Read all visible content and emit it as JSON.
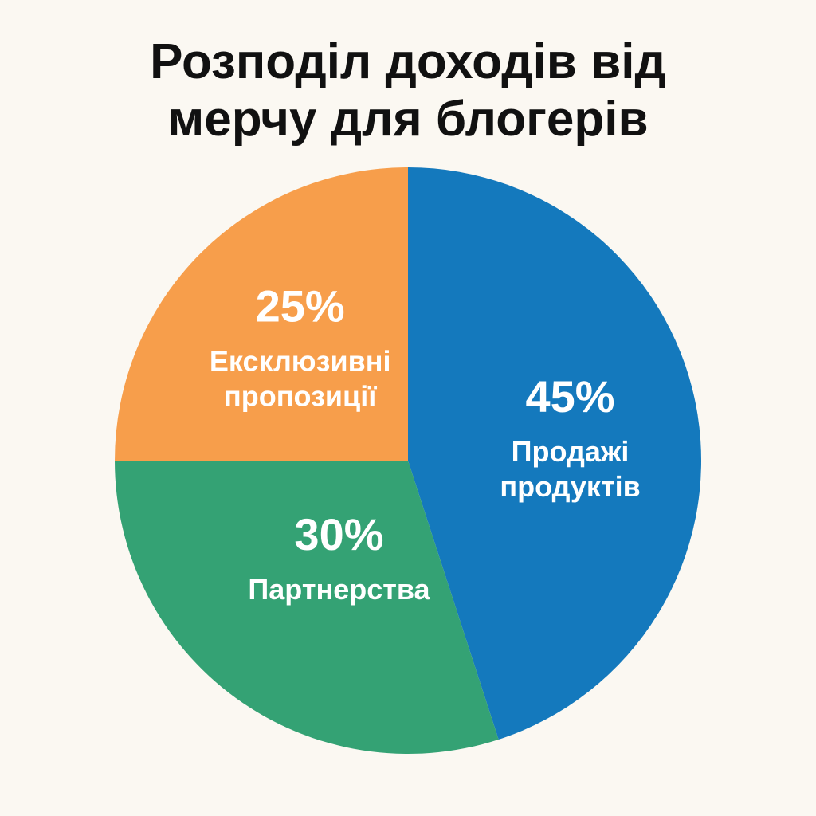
{
  "chart_data": {
    "type": "pie",
    "title_lines": [
      "Розподіл доходів від",
      "мерчу для блогерів"
    ],
    "slices": [
      {
        "label_lines": [
          "Продажі",
          "продуктів"
        ],
        "value": 45,
        "value_label": "45%",
        "color": "#1479bd"
      },
      {
        "label_lines": [
          "Партнерства"
        ],
        "value": 30,
        "value_label": "30%",
        "color": "#34a274"
      },
      {
        "label_lines": [
          "Ексклюзивні",
          "пропозиції"
        ],
        "value": 25,
        "value_label": "25%",
        "color": "#f79e4b"
      }
    ]
  }
}
